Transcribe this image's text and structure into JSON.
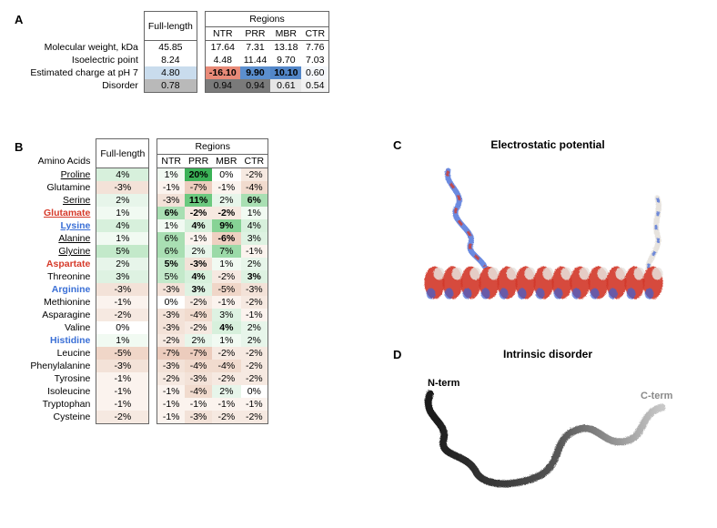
{
  "panelA": {
    "label": "A",
    "groupHeaders": {
      "full": "Full-length",
      "regions": "Regions"
    },
    "regionHeaders": [
      "NTR",
      "PRR",
      "MBR",
      "CTR"
    ],
    "rows": [
      {
        "label": "Molecular weight, kDa",
        "full": "45.85",
        "cells": [
          "17.64",
          "7.31",
          "13.18",
          "7.76"
        ],
        "colors": {
          "full": "#ffffff",
          "cells": [
            "#ffffff",
            "#ffffff",
            "#ffffff",
            "#ffffff"
          ]
        }
      },
      {
        "label": "Isoelectric point",
        "full": "8.24",
        "cells": [
          "4.48",
          "11.44",
          "9.70",
          "7.03"
        ],
        "colors": {
          "full": "#ffffff",
          "cells": [
            "#ffffff",
            "#ffffff",
            "#ffffff",
            "#ffffff"
          ]
        }
      },
      {
        "label": "Estimated charge at pH 7",
        "full": "4.80",
        "cells": [
          "-16.10",
          "9.90",
          "10.10",
          "0.60"
        ],
        "colors": {
          "full": "#c9dced",
          "cells": [
            "#e88a78",
            "#5b8fcf",
            "#5286c8",
            "#f4f7fb"
          ]
        },
        "bold": [
          false,
          true,
          true,
          true,
          false
        ]
      },
      {
        "label": "Disorder",
        "full": "0.78",
        "cells": [
          "0.94",
          "0.94",
          "0.61",
          "0.54"
        ],
        "colors": {
          "full": "#b9b9b9",
          "cells": [
            "#7a7a7a",
            "#7a7a7a",
            "#e6e6e6",
            "#f2f2f2"
          ]
        }
      }
    ]
  },
  "panelB": {
    "label": "B",
    "titleLeft": "Amino Acids",
    "groupHeaders": {
      "full": "Full-length",
      "regions": "Regions"
    },
    "regionHeaders": [
      "NTR",
      "PRR",
      "MBR",
      "CTR"
    ],
    "rows": [
      {
        "aa": "Proline",
        "style": "aa-u",
        "full": "4%",
        "cells": [
          "1%",
          "20%",
          "0%",
          "-2%"
        ],
        "colors": {
          "full": "#d7f0dc",
          "cells": [
            "#f1faf2",
            "#3bb257",
            "#ffffff",
            "#f6e9e1"
          ]
        },
        "bold": [
          false,
          false,
          true,
          false,
          false
        ]
      },
      {
        "aa": "Glutamine",
        "full": "-3%",
        "cells": [
          "-1%",
          "-7%",
          "-1%",
          "-4%"
        ],
        "colors": {
          "full": "#f3e2d8",
          "cells": [
            "#fbf3ee",
            "#ecccbd",
            "#fbf3ee",
            "#f1dbce"
          ]
        }
      },
      {
        "aa": "Serine",
        "style": "aa-u",
        "full": "2%",
        "cells": [
          "-3%",
          "11%",
          "2%",
          "6%"
        ],
        "colors": {
          "full": "#e7f5ea",
          "cells": [
            "#f3e2d8",
            "#6cc97f",
            "#e7f5ea",
            "#a9dfb3"
          ]
        },
        "bold": [
          false,
          false,
          true,
          false,
          true
        ]
      },
      {
        "aa": "Glutamate",
        "style": "aa-neg aa-u",
        "full": "1%",
        "cells": [
          "6%",
          "-2%",
          "-2%",
          "1%"
        ],
        "colors": {
          "full": "#f1faf2",
          "cells": [
            "#a9dfb3",
            "#f6e9e1",
            "#f6e9e1",
            "#f1faf2"
          ]
        },
        "bold": [
          false,
          true,
          true,
          true,
          false
        ]
      },
      {
        "aa": "Lysine",
        "style": "aa-pos aa-u",
        "full": "4%",
        "cells": [
          "1%",
          "4%",
          "9%",
          "4%"
        ],
        "colors": {
          "full": "#d7f0dc",
          "cells": [
            "#f1faf2",
            "#d7f0dc",
            "#86d395",
            "#d7f0dc"
          ]
        },
        "bold": [
          false,
          false,
          true,
          true,
          false
        ]
      },
      {
        "aa": "Alanine",
        "style": "aa-u",
        "full": "1%",
        "cells": [
          "6%",
          "-1%",
          "-6%",
          "3%"
        ],
        "colors": {
          "full": "#f1faf2",
          "cells": [
            "#a9dfb3",
            "#fbf3ee",
            "#eed0c1",
            "#def2e2"
          ]
        },
        "bold": [
          false,
          false,
          false,
          true,
          false
        ]
      },
      {
        "aa": "Glycine",
        "style": "aa-u",
        "full": "5%",
        "cells": [
          "6%",
          "2%",
          "7%",
          "-1%"
        ],
        "colors": {
          "full": "#c3e9ca",
          "cells": [
            "#a9dfb3",
            "#e7f5ea",
            "#9bdaa8",
            "#fbf3ee"
          ]
        }
      },
      {
        "aa": "Aspartate",
        "style": "aa-neg",
        "full": "2%",
        "cells": [
          "5%",
          "-3%",
          "1%",
          "2%"
        ],
        "colors": {
          "full": "#e7f5ea",
          "cells": [
            "#c3e9ca",
            "#f3e2d8",
            "#f1faf2",
            "#e7f5ea"
          ]
        },
        "bold": [
          false,
          true,
          true,
          false,
          false
        ]
      },
      {
        "aa": "Threonine",
        "full": "3%",
        "cells": [
          "5%",
          "4%",
          "-2%",
          "3%"
        ],
        "colors": {
          "full": "#def2e2",
          "cells": [
            "#c3e9ca",
            "#d7f0dc",
            "#f6e9e1",
            "#def2e2"
          ]
        },
        "bold": [
          false,
          false,
          true,
          false,
          true
        ]
      },
      {
        "aa": "Arginine",
        "style": "aa-pos",
        "full": "-3%",
        "cells": [
          "-3%",
          "3%",
          "-5%",
          "-3%"
        ],
        "colors": {
          "full": "#f3e2d8",
          "cells": [
            "#f3e2d8",
            "#def2e2",
            "#f0d6c8",
            "#f3e2d8"
          ]
        },
        "bold": [
          false,
          false,
          true,
          false,
          false
        ]
      },
      {
        "aa": "Methionine",
        "full": "-1%",
        "cells": [
          "0%",
          "-2%",
          "-1%",
          "-2%"
        ],
        "colors": {
          "full": "#fbf3ee",
          "cells": [
            "#ffffff",
            "#f6e9e1",
            "#fbf3ee",
            "#f6e9e1"
          ]
        }
      },
      {
        "aa": "Asparagine",
        "full": "-2%",
        "cells": [
          "-3%",
          "-4%",
          "3%",
          "-1%"
        ],
        "colors": {
          "full": "#f6e9e1",
          "cells": [
            "#f3e2d8",
            "#f1dbce",
            "#def2e2",
            "#fbf3ee"
          ]
        }
      },
      {
        "aa": "Valine",
        "full": "0%",
        "cells": [
          "-3%",
          "-2%",
          "4%",
          "2%"
        ],
        "colors": {
          "full": "#ffffff",
          "cells": [
            "#f3e2d8",
            "#f6e9e1",
            "#d7f0dc",
            "#e7f5ea"
          ]
        },
        "bold": [
          false,
          false,
          false,
          true,
          false
        ]
      },
      {
        "aa": "Histidine",
        "style": "aa-pos",
        "full": "1%",
        "cells": [
          "-2%",
          "2%",
          "1%",
          "2%"
        ],
        "colors": {
          "full": "#f1faf2",
          "cells": [
            "#f6e9e1",
            "#e7f5ea",
            "#f1faf2",
            "#e7f5ea"
          ]
        }
      },
      {
        "aa": "Leucine",
        "full": "-5%",
        "cells": [
          "-7%",
          "-7%",
          "-2%",
          "-2%"
        ],
        "colors": {
          "full": "#f0d6c8",
          "cells": [
            "#ecccbd",
            "#ecccbd",
            "#f6e9e1",
            "#f6e9e1"
          ]
        }
      },
      {
        "aa": "Phenylalanine",
        "full": "-3%",
        "cells": [
          "-3%",
          "-4%",
          "-4%",
          "-2%"
        ],
        "colors": {
          "full": "#f3e2d8",
          "cells": [
            "#f3e2d8",
            "#f1dbce",
            "#f1dbce",
            "#f6e9e1"
          ]
        }
      },
      {
        "aa": "Tyrosine",
        "full": "-1%",
        "cells": [
          "-2%",
          "-3%",
          "-2%",
          "-2%"
        ],
        "colors": {
          "full": "#fbf3ee",
          "cells": [
            "#f6e9e1",
            "#f3e2d8",
            "#f6e9e1",
            "#f6e9e1"
          ]
        }
      },
      {
        "aa": "Isoleucine",
        "full": "-1%",
        "cells": [
          "-1%",
          "-4%",
          "2%",
          "0%"
        ],
        "colors": {
          "full": "#fbf3ee",
          "cells": [
            "#fbf3ee",
            "#f1dbce",
            "#e7f5ea",
            "#ffffff"
          ]
        }
      },
      {
        "aa": "Tryptophan",
        "full": "-1%",
        "cells": [
          "-1%",
          "-1%",
          "-1%",
          "-1%"
        ],
        "colors": {
          "full": "#fbf3ee",
          "cells": [
            "#fbf3ee",
            "#fbf3ee",
            "#fbf3ee",
            "#fbf3ee"
          ]
        }
      },
      {
        "aa": "Cysteine",
        "full": "-2%",
        "cells": [
          "-1%",
          "-3%",
          "-2%",
          "-2%"
        ],
        "colors": {
          "full": "#f6e9e1",
          "cells": [
            "#fbf3ee",
            "#f3e2d8",
            "#f6e9e1",
            "#f6e9e1"
          ]
        }
      }
    ]
  },
  "panelC": {
    "label": "C",
    "title": "Electrostatic potential",
    "colors": {
      "neg": "#d33a2a",
      "pos": "#3a63d6",
      "neutral": "#e7e3de"
    }
  },
  "panelD": {
    "label": "D",
    "title": "Intrinsic disorder",
    "labels": {
      "n": "N-term",
      "c": "C-term"
    },
    "colors": {
      "dark": "#1a1a1a",
      "light": "#c8c8c8"
    }
  }
}
